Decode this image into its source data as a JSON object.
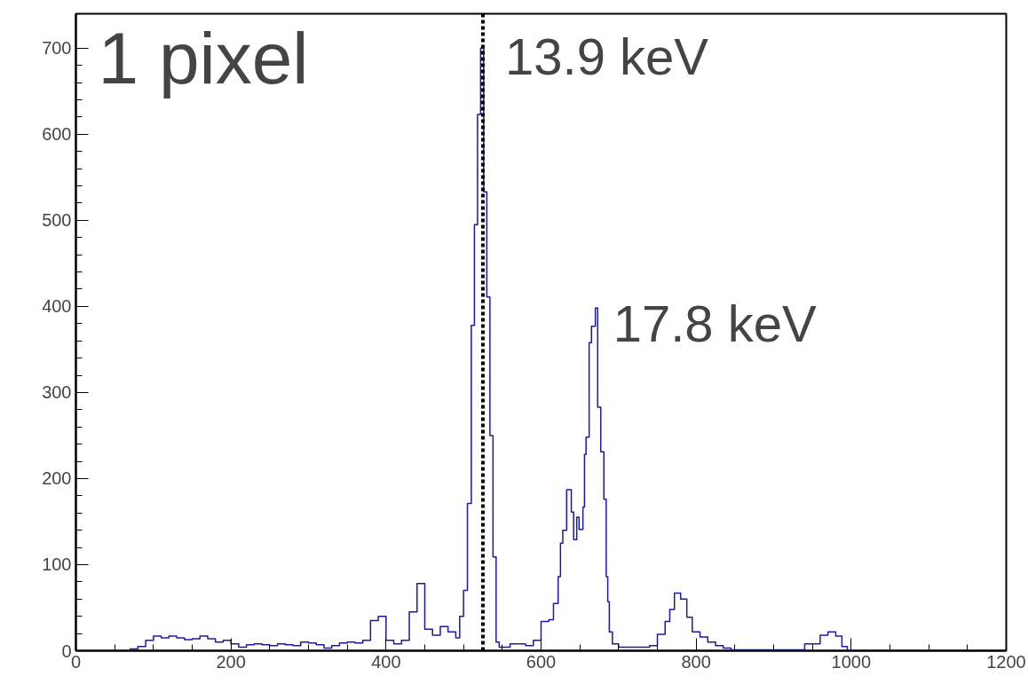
{
  "chart_data": {
    "type": "histogram",
    "color": "#1a1aa6",
    "bins": [
      60,
      70,
      80,
      90,
      100,
      110,
      120,
      130,
      140,
      150,
      160,
      170,
      180,
      190,
      200,
      210,
      220,
      230,
      240,
      250,
      260,
      270,
      280,
      290,
      300,
      310,
      320,
      330,
      340,
      350,
      360,
      370,
      380,
      390,
      400,
      410,
      420,
      430,
      440,
      450,
      460,
      470,
      480,
      490,
      495,
      500,
      505,
      510,
      514,
      518,
      522,
      526,
      530,
      534,
      538,
      542,
      546,
      560,
      580,
      590,
      600,
      610,
      616,
      622,
      625,
      628,
      633,
      639,
      642,
      646,
      649,
      654,
      656,
      658,
      662,
      665,
      670,
      673,
      677,
      681,
      684,
      686,
      688,
      692,
      700,
      740,
      750,
      760,
      766,
      772,
      780,
      788,
      795,
      805,
      815,
      825,
      835,
      845,
      940,
      960,
      970,
      980,
      988,
      995,
      1200
    ],
    "values": [
      0,
      2,
      5,
      12,
      17,
      15,
      17,
      15,
      13,
      14,
      17,
      14,
      10,
      12,
      8,
      4,
      7,
      8,
      7,
      6,
      8,
      7,
      6,
      10,
      9,
      7,
      3,
      6,
      9,
      10,
      9,
      12,
      35,
      40,
      12,
      8,
      12,
      45,
      78,
      25,
      18,
      28,
      22,
      15,
      40,
      70,
      171,
      378,
      495,
      623,
      700,
      533,
      411,
      250,
      109,
      10,
      4,
      8,
      6,
      12,
      34,
      36,
      55,
      86,
      125,
      140,
      187,
      161,
      129,
      155,
      141,
      167,
      228,
      248,
      358,
      377,
      398,
      283,
      231,
      176,
      86,
      57,
      22,
      8,
      4,
      6,
      19,
      34,
      48,
      67,
      60,
      39,
      22,
      16,
      10,
      6,
      3,
      1,
      8,
      18,
      22,
      17,
      5,
      0
    ],
    "xlim": [
      0,
      1200
    ],
    "ylim": [
      0,
      740
    ],
    "xticks": [
      0,
      200,
      400,
      600,
      800,
      1000,
      1200
    ],
    "yticks": [
      0,
      100,
      200,
      300,
      400,
      500,
      600,
      700
    ],
    "grid": false,
    "ref_lines": [
      {
        "axis": "x",
        "value": 525,
        "label": "13.9 keV",
        "color": "#000000",
        "line_style": "dotted"
      }
    ],
    "annotations": [
      "1 pixel",
      {
        "text": "17.8 keV",
        "x": 670,
        "y": 398
      }
    ]
  }
}
